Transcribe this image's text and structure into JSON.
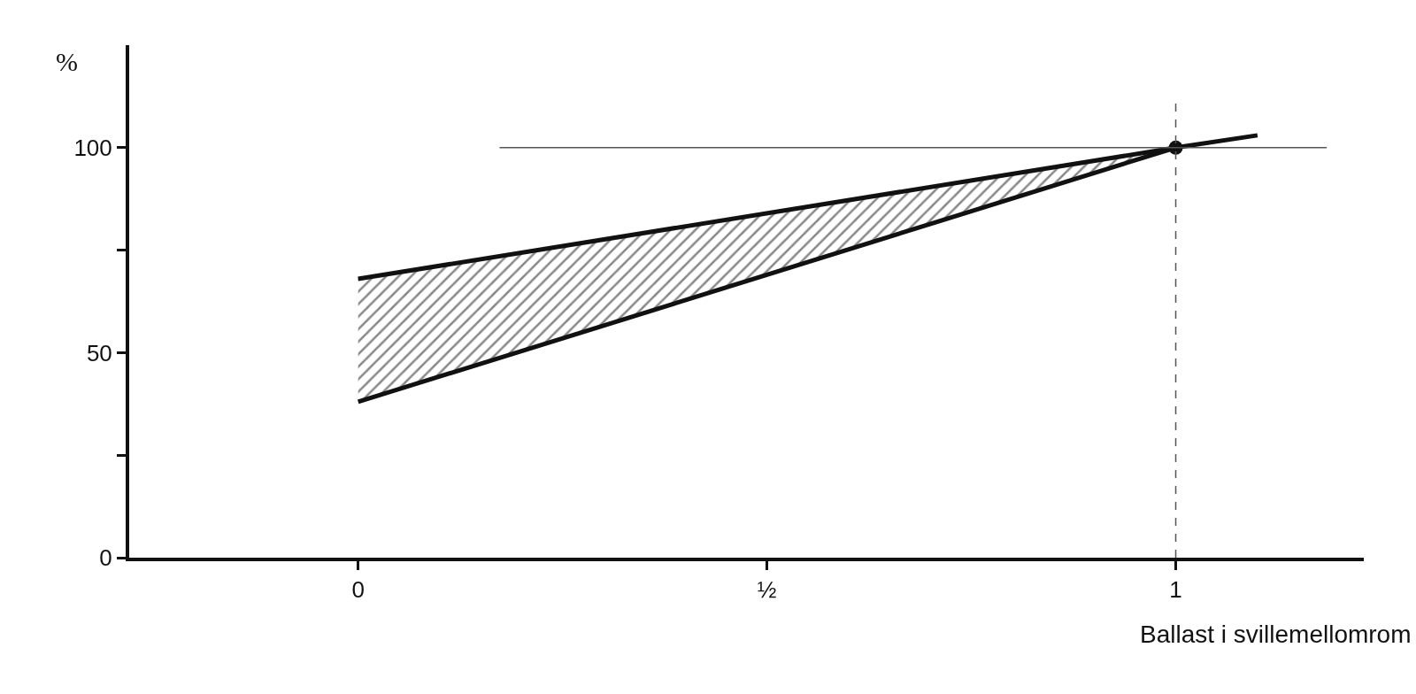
{
  "chart_data": {
    "type": "line",
    "xlabel": "Ballast i svillemellomrom",
    "ylabel": "%",
    "xlim": [
      -0.28,
      1.23
    ],
    "ylim": [
      0,
      125
    ],
    "xticks": [
      0,
      {
        "value": 0.5,
        "label": "½"
      },
      1
    ],
    "yticks": [
      0,
      {
        "value": 25,
        "label": null
      },
      50,
      {
        "value": 75,
        "label": null
      },
      100
    ],
    "series": [
      {
        "color": "#111111",
        "x": [
          0,
          1,
          1.1
        ],
        "values": [
          38,
          100,
          103
        ]
      },
      {
        "color": "#111111",
        "x": [
          0,
          1
        ],
        "values": [
          68,
          100
        ],
        "lower": [
          38,
          100
        ],
        "upper": [
          68,
          100
        ]
      },
      {
        "type": "scatter",
        "color": "#111111",
        "x": [
          1
        ],
        "values": [
          100
        ],
        "marker": "circle"
      }
    ],
    "ref_lines": [
      {
        "axis": "y",
        "value": 100,
        "label": null
      },
      {
        "axis": "x",
        "value": 1,
        "label": null
      }
    ],
    "tick_labels": "xy"
  }
}
